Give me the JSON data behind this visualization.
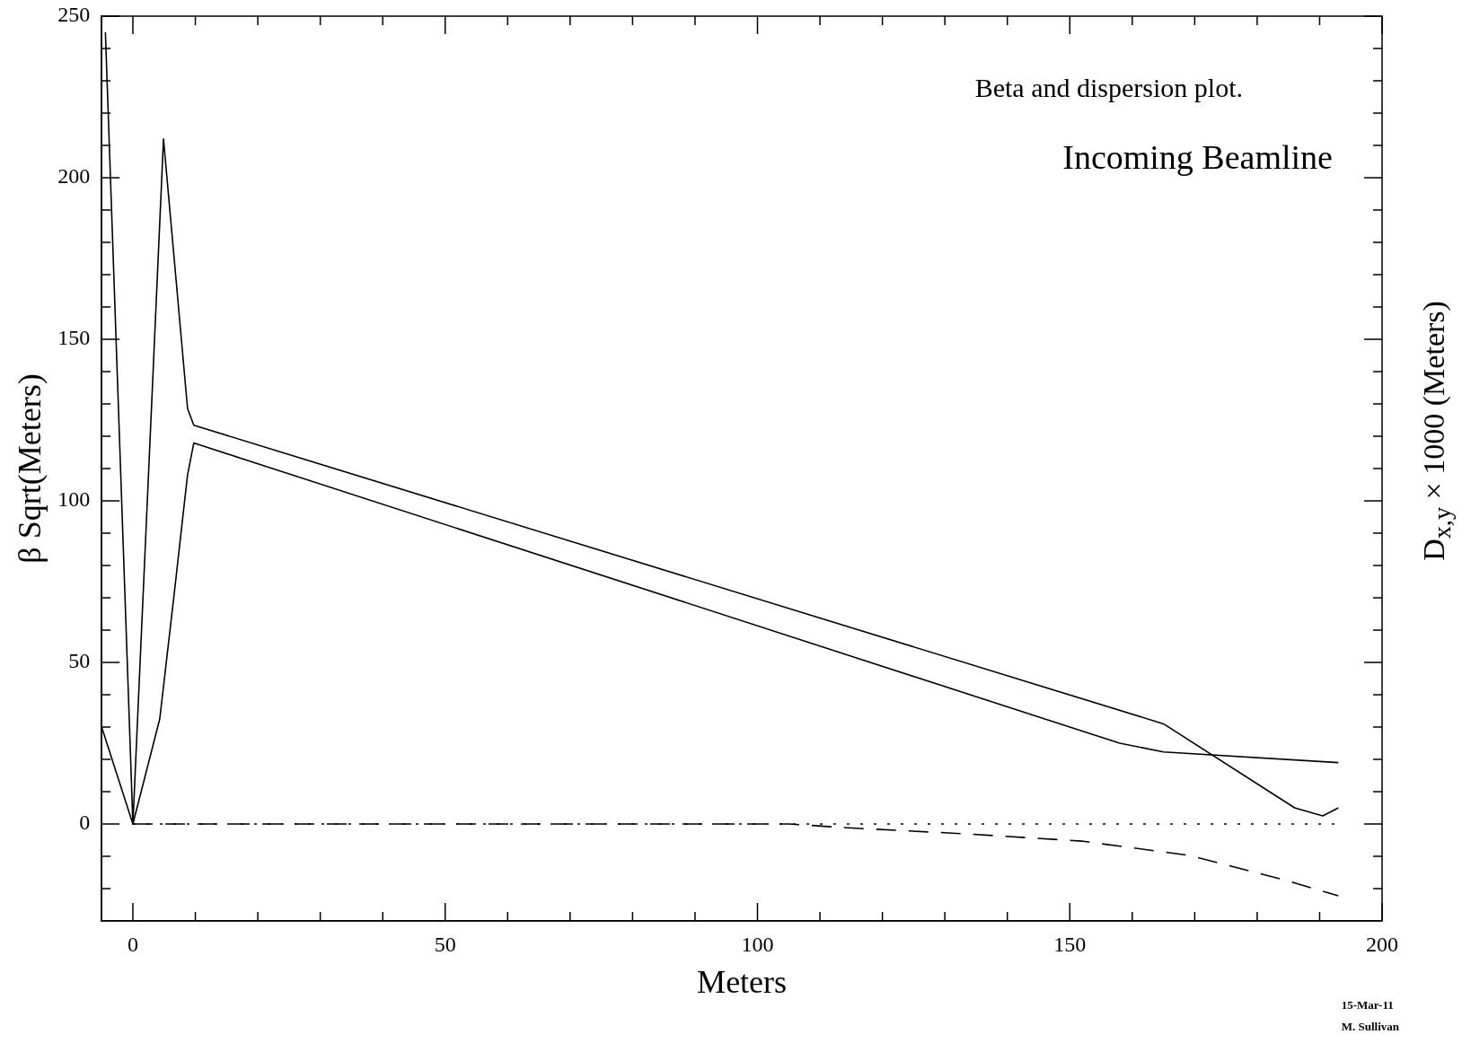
{
  "chart_data": {
    "type": "line",
    "title": "Beta and dispersion plot.",
    "subtitle": "Incoming Beamline",
    "xlabel": "Meters",
    "ylabel": "β Sqrt(Meters)",
    "y2label": "D$_{x,y}$ × 1000 (Meters)",
    "annotations": [
      "15-Mar-11",
      "M. Sullivan"
    ],
    "xlim": [
      -5,
      200
    ],
    "ylim": [
      -30,
      250
    ],
    "xticks": [
      {
        "value": 0,
        "label": "0"
      },
      {
        "value": 10,
        "label": null
      },
      {
        "value": 20,
        "label": null
      },
      {
        "value": 30,
        "label": null
      },
      {
        "value": 40,
        "label": null
      },
      50,
      {
        "value": 60,
        "label": null
      },
      {
        "value": 70,
        "label": null
      },
      {
        "value": 80,
        "label": null
      },
      {
        "value": 90,
        "label": null
      },
      100,
      {
        "value": 110,
        "label": null
      },
      {
        "value": 120,
        "label": null
      },
      {
        "value": 130,
        "label": null
      },
      {
        "value": 140,
        "label": null
      },
      150,
      {
        "value": 160,
        "label": null
      },
      {
        "value": 170,
        "label": null
      },
      {
        "value": 180,
        "label": null
      },
      {
        "value": 190,
        "label": null
      },
      200
    ],
    "yticks": [
      {
        "value": -20,
        "label": null
      },
      {
        "value": -10,
        "label": null
      },
      0,
      {
        "value": 10,
        "label": null
      },
      {
        "value": 20,
        "label": null
      },
      {
        "value": 30,
        "label": null
      },
      {
        "value": 40,
        "label": null
      },
      50,
      {
        "value": 60,
        "label": null
      },
      {
        "value": 70,
        "label": null
      },
      {
        "value": 80,
        "label": null
      },
      {
        "value": 90,
        "label": null
      },
      100,
      {
        "value": 110,
        "label": null
      },
      {
        "value": 120,
        "label": null
      },
      {
        "value": 130,
        "label": null
      },
      {
        "value": 140,
        "label": null
      },
      150,
      {
        "value": 160,
        "label": null
      },
      {
        "value": 170,
        "label": null
      },
      {
        "value": 180,
        "label": null
      },
      {
        "value": 190,
        "label": null
      },
      200,
      {
        "value": 210,
        "label": null
      },
      {
        "value": 220,
        "label": null
      },
      {
        "value": 230,
        "label": null
      },
      {
        "value": 240,
        "label": null
      },
      250
    ],
    "grid": false,
    "legend": false,
    "marker": "none",
    "series": [
      {
        "color": "#000000",
        "line_style": "solid",
        "x": [
          -4.4,
          0,
          4.9,
          8.75,
          9.75,
          165,
          186,
          190.5,
          193
        ],
        "values": [
          245,
          0,
          212,
          128.6,
          123.4,
          31,
          5,
          2.5,
          5
        ]
      },
      {
        "color": "#000000",
        "line_style": "solid",
        "x": [
          -5,
          0,
          4.3,
          6.6,
          8.75,
          9.75,
          150,
          158,
          165,
          193
        ],
        "values": [
          30,
          0,
          32.5,
          71,
          108,
          117.9,
          30,
          25,
          22.3,
          19
        ]
      },
      {
        "color": "#000000",
        "line_style": "dashed",
        "x": [
          0,
          105,
          114.6,
          132.8,
          151.9,
          169.1,
          184.1,
          193
        ],
        "values": [
          0,
          0,
          -1.2,
          -3,
          -5.3,
          -9.7,
          -17.2,
          -22.2
        ]
      },
      {
        "color": "#000000",
        "line_style": "dotted",
        "x": [
          0,
          193
        ],
        "values": [
          0,
          0
        ]
      }
    ]
  }
}
